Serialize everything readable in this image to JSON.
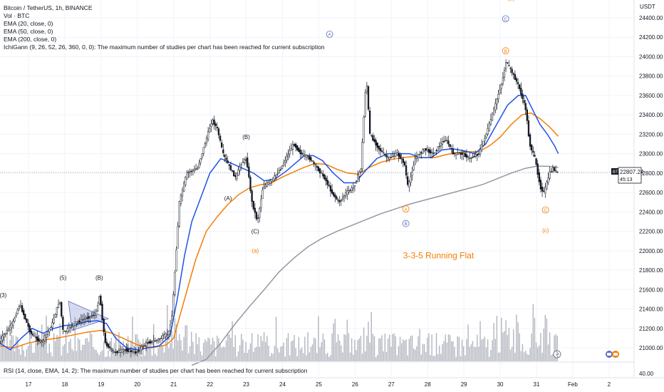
{
  "legend": {
    "title": "Bitcoin / TetherUS, 1h, BINANCE",
    "vol": "Vol · BTC",
    "ema20": "EMA (20, close, 0)",
    "ema50": "EMA (50, close, 0)",
    "ema200": "EMA (200, close, 0)",
    "ichi": "IchiGann (9, 26, 52, 26, 360, 0, 0): The maximum number of studies per chart has been reached for current subscription"
  },
  "rsi_label": "RSI (14, close, EMA, 14, 2): The maximum number of studies per chart has been reached for current subscription",
  "axis_currency": "USDT",
  "price_tag": {
    "symbol": "BTCUSDT",
    "price": "22807.24",
    "timer": "45:13"
  },
  "rsi_level": "40.00",
  "colors": {
    "ema20": "#1e53e5",
    "ema50": "#f57c00",
    "ema200": "#9598a1",
    "orange_label": "#f57c00",
    "blue_label": "#5c6bc0",
    "candle": "#131722"
  },
  "chart_data": {
    "type": "line",
    "title": "Bitcoin / TetherUS, 1h, BINANCE",
    "ylim": [
      20850,
      24650
    ],
    "y_ticks": [
      21000,
      21200,
      21400,
      21600,
      21800,
      22000,
      22200,
      22400,
      22600,
      22800,
      23000,
      23200,
      23400,
      23600,
      23800,
      24000,
      24200,
      24400
    ],
    "x_ticks": [
      {
        "label": "17",
        "day": 17
      },
      {
        "label": "18",
        "day": 18
      },
      {
        "label": "19",
        "day": 19
      },
      {
        "label": "20",
        "day": 20
      },
      {
        "label": "21",
        "day": 21
      },
      {
        "label": "22",
        "day": 22
      },
      {
        "label": "23",
        "day": 23
      },
      {
        "label": "24",
        "day": 24
      },
      {
        "label": "25",
        "day": 25
      },
      {
        "label": "26",
        "day": 26
      },
      {
        "label": "27",
        "day": 27
      },
      {
        "label": "28",
        "day": 28
      },
      {
        "label": "29",
        "day": 29
      },
      {
        "label": "30",
        "day": 30
      },
      {
        "label": "31",
        "day": 31
      },
      {
        "label": "Feb",
        "day": 32
      },
      {
        "label": "2",
        "day": 33
      }
    ],
    "price_path": [
      [
        16.2,
        21050
      ],
      [
        16.6,
        21250
      ],
      [
        16.8,
        21450
      ],
      [
        17.1,
        21150
      ],
      [
        17.4,
        21050
      ],
      [
        17.7,
        21250
      ],
      [
        17.9,
        21500
      ],
      [
        18.0,
        21150
      ],
      [
        18.3,
        21250
      ],
      [
        18.6,
        21300
      ],
      [
        18.9,
        21350
      ],
      [
        19.0,
        21550
      ],
      [
        19.15,
        21050
      ],
      [
        19.4,
        20950
      ],
      [
        19.7,
        20980
      ],
      [
        20.0,
        20950
      ],
      [
        20.3,
        21050
      ],
      [
        20.6,
        21080
      ],
      [
        20.9,
        21150
      ],
      [
        21.0,
        21350
      ],
      [
        21.2,
        22500
      ],
      [
        21.4,
        22800
      ],
      [
        21.7,
        22850
      ],
      [
        21.9,
        23100
      ],
      [
        22.1,
        23350
      ],
      [
        22.25,
        23250
      ],
      [
        22.4,
        23000
      ],
      [
        22.6,
        22850
      ],
      [
        22.75,
        22750
      ],
      [
        22.9,
        22900
      ],
      [
        23.05,
        22950
      ],
      [
        23.2,
        22500
      ],
      [
        23.35,
        22300
      ],
      [
        23.5,
        22650
      ],
      [
        23.8,
        22750
      ],
      [
        24.0,
        22850
      ],
      [
        24.2,
        23000
      ],
      [
        24.35,
        23100
      ],
      [
        24.55,
        23000
      ],
      [
        24.8,
        22950
      ],
      [
        25.0,
        22850
      ],
      [
        25.2,
        22750
      ],
      [
        25.4,
        22600
      ],
      [
        25.6,
        22500
      ],
      [
        25.8,
        22600
      ],
      [
        26.0,
        22650
      ],
      [
        26.2,
        22850
      ],
      [
        26.35,
        23800
      ],
      [
        26.45,
        23200
      ],
      [
        26.7,
        23050
      ],
      [
        26.95,
        22950
      ],
      [
        27.2,
        23000
      ],
      [
        27.4,
        22900
      ],
      [
        27.5,
        22650
      ],
      [
        27.7,
        22950
      ],
      [
        27.95,
        23050
      ],
      [
        28.2,
        23000
      ],
      [
        28.4,
        23100
      ],
      [
        28.55,
        23150
      ],
      [
        28.75,
        23000
      ],
      [
        29.0,
        23000
      ],
      [
        29.2,
        22950
      ],
      [
        29.45,
        23000
      ],
      [
        29.7,
        23250
      ],
      [
        29.9,
        23500
      ],
      [
        30.1,
        23750
      ],
      [
        30.2,
        23950
      ],
      [
        30.35,
        23850
      ],
      [
        30.55,
        23700
      ],
      [
        30.75,
        23450
      ],
      [
        30.85,
        23100
      ],
      [
        31.0,
        22950
      ],
      [
        31.15,
        22650
      ],
      [
        31.25,
        22600
      ],
      [
        31.4,
        22800
      ],
      [
        31.5,
        22850
      ],
      [
        31.6,
        22807
      ]
    ],
    "ema20": [
      [
        16.2,
        21050
      ],
      [
        16.5,
        20980
      ],
      [
        16.8,
        21100
      ],
      [
        17.1,
        21200
      ],
      [
        17.4,
        21150
      ],
      [
        17.7,
        21200
      ],
      [
        18.0,
        21230
      ],
      [
        18.3,
        21240
      ],
      [
        18.6,
        21270
      ],
      [
        18.9,
        21280
      ],
      [
        19.15,
        21250
      ],
      [
        19.4,
        21100
      ],
      [
        19.7,
        21000
      ],
      [
        20.0,
        20980
      ],
      [
        20.3,
        21000
      ],
      [
        20.6,
        21020
      ],
      [
        20.9,
        21120
      ],
      [
        21.1,
        21500
      ],
      [
        21.3,
        21950
      ],
      [
        21.5,
        22300
      ],
      [
        21.8,
        22600
      ],
      [
        22.0,
        22800
      ],
      [
        22.3,
        22950
      ],
      [
        22.6,
        22900
      ],
      [
        22.9,
        22850
      ],
      [
        23.2,
        22800
      ],
      [
        23.5,
        22720
      ],
      [
        23.8,
        22740
      ],
      [
        24.1,
        22820
      ],
      [
        24.35,
        22900
      ],
      [
        24.6,
        22980
      ],
      [
        24.85,
        22980
      ],
      [
        25.1,
        22930
      ],
      [
        25.4,
        22800
      ],
      [
        25.7,
        22700
      ],
      [
        26.0,
        22700
      ],
      [
        26.3,
        22830
      ],
      [
        26.6,
        22950
      ],
      [
        26.9,
        23000
      ],
      [
        27.2,
        23000
      ],
      [
        27.5,
        23000
      ],
      [
        27.8,
        22960
      ],
      [
        28.1,
        22960
      ],
      [
        28.4,
        23040
      ],
      [
        28.7,
        23050
      ],
      [
        29.0,
        23030
      ],
      [
        29.3,
        23000
      ],
      [
        29.6,
        23100
      ],
      [
        29.9,
        23300
      ],
      [
        30.2,
        23500
      ],
      [
        30.5,
        23600
      ],
      [
        30.7,
        23600
      ],
      [
        30.9,
        23450
      ],
      [
        31.1,
        23300
      ],
      [
        31.3,
        23200
      ],
      [
        31.5,
        23080
      ],
      [
        31.6,
        23000
      ]
    ],
    "ema50": [
      [
        16.2,
        21020
      ],
      [
        16.6,
        21000
      ],
      [
        17.0,
        21050
      ],
      [
        17.4,
        21080
      ],
      [
        17.8,
        21100
      ],
      [
        18.2,
        21130
      ],
      [
        18.6,
        21160
      ],
      [
        19.0,
        21180
      ],
      [
        19.3,
        21150
      ],
      [
        19.6,
        21100
      ],
      [
        20.0,
        21030
      ],
      [
        20.4,
        21000
      ],
      [
        20.8,
        21030
      ],
      [
        21.0,
        21100
      ],
      [
        21.3,
        21500
      ],
      [
        21.6,
        21900
      ],
      [
        21.9,
        22200
      ],
      [
        22.2,
        22350
      ],
      [
        22.5,
        22480
      ],
      [
        22.8,
        22580
      ],
      [
        23.1,
        22650
      ],
      [
        23.4,
        22680
      ],
      [
        23.7,
        22700
      ],
      [
        24.0,
        22760
      ],
      [
        24.3,
        22810
      ],
      [
        24.6,
        22860
      ],
      [
        24.9,
        22900
      ],
      [
        25.2,
        22890
      ],
      [
        25.5,
        22840
      ],
      [
        25.8,
        22800
      ],
      [
        26.1,
        22790
      ],
      [
        26.4,
        22860
      ],
      [
        26.7,
        22910
      ],
      [
        27.0,
        22940
      ],
      [
        27.3,
        22960
      ],
      [
        27.6,
        22970
      ],
      [
        27.9,
        22960
      ],
      [
        28.2,
        22960
      ],
      [
        28.5,
        22990
      ],
      [
        28.8,
        23010
      ],
      [
        29.1,
        23020
      ],
      [
        29.4,
        23020
      ],
      [
        29.7,
        23080
      ],
      [
        30.0,
        23170
      ],
      [
        30.3,
        23300
      ],
      [
        30.6,
        23400
      ],
      [
        30.85,
        23420
      ],
      [
        31.1,
        23360
      ],
      [
        31.35,
        23280
      ],
      [
        31.6,
        23180
      ]
    ],
    "ema200": [
      [
        21.5,
        20820
      ],
      [
        21.9,
        20880
      ],
      [
        22.3,
        21050
      ],
      [
        22.7,
        21250
      ],
      [
        23.1,
        21430
      ],
      [
        23.5,
        21600
      ],
      [
        23.9,
        21780
      ],
      [
        24.3,
        21920
      ],
      [
        24.7,
        22040
      ],
      [
        25.1,
        22130
      ],
      [
        25.5,
        22200
      ],
      [
        25.9,
        22260
      ],
      [
        26.3,
        22320
      ],
      [
        26.7,
        22380
      ],
      [
        27.1,
        22430
      ],
      [
        27.5,
        22480
      ],
      [
        27.9,
        22520
      ],
      [
        28.3,
        22560
      ],
      [
        28.7,
        22600
      ],
      [
        29.1,
        22640
      ],
      [
        29.5,
        22680
      ],
      [
        29.9,
        22740
      ],
      [
        30.3,
        22800
      ],
      [
        30.7,
        22850
      ],
      [
        31.0,
        22870
      ],
      [
        31.3,
        22870
      ],
      [
        31.6,
        22860
      ]
    ],
    "annotations": [
      {
        "text": "(3)",
        "day": 16.3,
        "price": 21520,
        "color": "#131722"
      },
      {
        "text": "(5)",
        "day": 17.95,
        "price": 21700,
        "color": "#131722"
      },
      {
        "text": "(B)",
        "day": 18.95,
        "price": 21700,
        "color": "#131722"
      },
      {
        "text": "(A)",
        "day": 22.5,
        "price": 22520,
        "color": "#131722"
      },
      {
        "text": "(B)",
        "day": 23.0,
        "price": 23150,
        "color": "#131722"
      },
      {
        "text": "(C)",
        "day": 23.25,
        "price": 22180,
        "color": "#131722"
      },
      {
        "text": "(a)",
        "day": 23.25,
        "price": 21980,
        "color": "#f57c00"
      },
      {
        "text": "(b)",
        "day": 30.3,
        "price": 24580,
        "color": "#f57c00"
      },
      {
        "text": "(c)",
        "day": 31.25,
        "price": 22190,
        "color": "#f57c00"
      }
    ],
    "circled": [
      {
        "text": "A",
        "day": 25.3,
        "price": 24230,
        "color": "#5c6bc0"
      },
      {
        "text": "A",
        "day": 27.4,
        "price": 22430,
        "color": "#f57c00"
      },
      {
        "text": "B",
        "day": 27.4,
        "price": 22280,
        "color": "#5c6bc0"
      },
      {
        "text": "C",
        "day": 30.15,
        "price": 24390,
        "color": "#5c6bc0"
      },
      {
        "text": "B",
        "day": 30.15,
        "price": 24060,
        "color": "#f57c00"
      },
      {
        "text": "C",
        "day": 31.25,
        "price": 22420,
        "color": "#f57c00"
      }
    ],
    "pattern_label": {
      "text": "3-3-5 Running Flat",
      "day": 28.3,
      "price": 21920,
      "color": "#f57c00"
    }
  }
}
